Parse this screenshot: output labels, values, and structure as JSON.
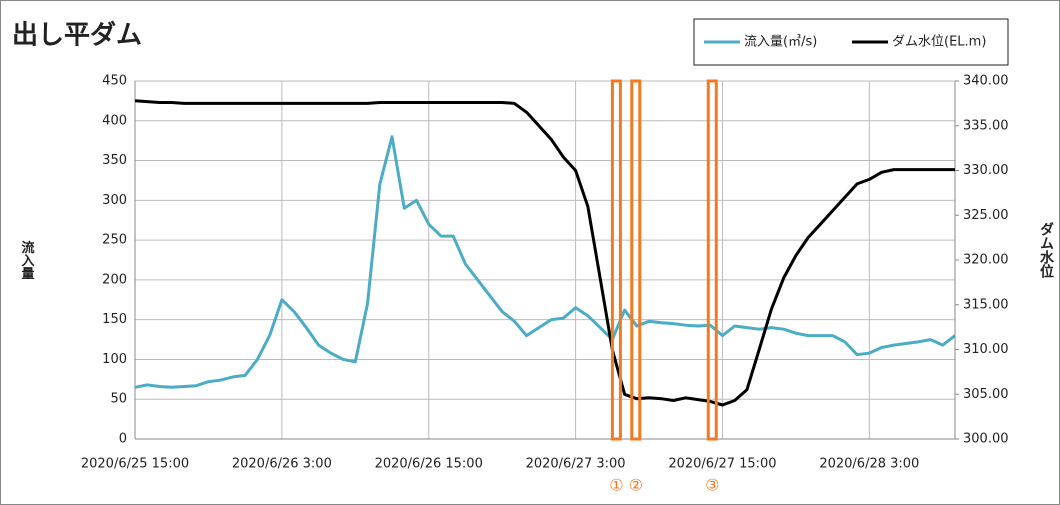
{
  "chart_data": {
    "type": "line",
    "title": "出し平ダム",
    "y_label": "流入量",
    "y2_label": "ダム水位",
    "x": [
      "2020/6/25 15:00",
      "2020/6/25 16:00",
      "2020/6/25 17:00",
      "2020/6/25 18:00",
      "2020/6/25 19:00",
      "2020/6/25 20:00",
      "2020/6/25 21:00",
      "2020/6/25 22:00",
      "2020/6/25 23:00",
      "2020/6/26 0:00",
      "2020/6/26 1:00",
      "2020/6/26 2:00",
      "2020/6/26 3:00",
      "2020/6/26 4:00",
      "2020/6/26 5:00",
      "2020/6/26 6:00",
      "2020/6/26 7:00",
      "2020/6/26 8:00",
      "2020/6/26 9:00",
      "2020/6/26 10:00",
      "2020/6/26 11:00",
      "2020/6/26 12:00",
      "2020/6/26 13:00",
      "2020/6/26 14:00",
      "2020/6/26 15:00",
      "2020/6/26 16:00",
      "2020/6/26 17:00",
      "2020/6/26 18:00",
      "2020/6/26 19:00",
      "2020/6/26 20:00",
      "2020/6/26 21:00",
      "2020/6/26 22:00",
      "2020/6/26 23:00",
      "2020/6/27 0:00",
      "2020/6/27 1:00",
      "2020/6/27 2:00",
      "2020/6/27 3:00",
      "2020/6/27 4:00",
      "2020/6/27 5:00",
      "2020/6/27 6:00",
      "2020/6/27 7:00",
      "2020/6/27 8:00",
      "2020/6/27 9:00",
      "2020/6/27 10:00",
      "2020/6/27 11:00",
      "2020/6/27 12:00",
      "2020/6/27 13:00",
      "2020/6/27 14:00",
      "2020/6/27 15:00",
      "2020/6/27 16:00",
      "2020/6/27 17:00",
      "2020/6/27 18:00",
      "2020/6/27 19:00",
      "2020/6/27 20:00",
      "2020/6/27 21:00",
      "2020/6/27 22:00",
      "2020/6/27 23:00",
      "2020/6/28 0:00",
      "2020/6/28 1:00",
      "2020/6/28 2:00",
      "2020/6/28 3:00",
      "2020/6/28 4:00",
      "2020/6/28 5:00",
      "2020/6/28 6:00",
      "2020/6/28 7:00",
      "2020/6/28 8:00",
      "2020/6/28 9:00",
      "2020/6/28 10:00"
    ],
    "series": [
      {
        "name": "流入量(㎥/s)",
        "color": "#4bacc6",
        "values": [
          65,
          68,
          66,
          65,
          66,
          67,
          72,
          74,
          78,
          80,
          100,
          130,
          175,
          160,
          140,
          118,
          108,
          100,
          97,
          170,
          320,
          380,
          290,
          300,
          270,
          255,
          255,
          220,
          200,
          180,
          160,
          148,
          130,
          140,
          150,
          152,
          165,
          155,
          140,
          125,
          162,
          142,
          148,
          146,
          145,
          143,
          142,
          143,
          130,
          142,
          140,
          138,
          140,
          138,
          133,
          130,
          130,
          130,
          122,
          106,
          108,
          115,
          118,
          120,
          122,
          125,
          118,
          130
        ]
      },
      {
        "name": "ダム水位(EL.m)",
        "color": "#000000",
        "axis": "y2",
        "values": [
          337.8,
          337.7,
          337.6,
          337.6,
          337.5,
          337.5,
          337.5,
          337.5,
          337.5,
          337.5,
          337.5,
          337.5,
          337.5,
          337.5,
          337.5,
          337.5,
          337.5,
          337.5,
          337.5,
          337.5,
          337.6,
          337.6,
          337.6,
          337.6,
          337.6,
          337.6,
          337.6,
          337.6,
          337.6,
          337.6,
          337.6,
          337.5,
          336.5,
          335,
          333.5,
          331.5,
          330,
          326,
          318,
          310,
          305,
          304.5,
          304.6,
          304.5,
          304.3,
          304.6,
          304.4,
          304.2,
          303.8,
          304.3,
          305.5,
          310,
          314.5,
          318,
          320.5,
          322.5,
          324,
          325.5,
          327,
          328.5,
          329,
          329.8,
          330.1,
          330.1,
          330.1,
          330.1,
          330.1,
          330.1
        ]
      }
    ],
    "xlim": [
      "2020/6/25 15:00",
      "2020/6/28 10:00"
    ],
    "xticks": [
      "2020/6/25 15:00",
      "2020/6/26 3:00",
      "2020/6/26 15:00",
      "2020/6/27 3:00",
      "2020/6/27 15:00",
      "2020/6/28 3:00"
    ],
    "ylim": [
      0,
      450
    ],
    "yticks": [
      0,
      50,
      100,
      150,
      200,
      250,
      300,
      350,
      400,
      450
    ],
    "y2lim": [
      300,
      340
    ],
    "y2ticks": [
      {
        "value": 300,
        "label": "300.00"
      },
      {
        "value": 305,
        "label": "305.00"
      },
      {
        "value": 310,
        "label": "310.00"
      },
      {
        "value": 315,
        "label": "315.00"
      },
      {
        "value": 320,
        "label": "320.00"
      },
      {
        "value": 325,
        "label": "325.00"
      },
      {
        "value": 330,
        "label": "330.00"
      },
      {
        "value": 335,
        "label": "335.00"
      },
      {
        "value": 340,
        "label": "340.00"
      }
    ],
    "grid": true,
    "legend": "top-right",
    "markers": [
      {
        "label": "①",
        "x": "2020/6/27 6:20"
      },
      {
        "label": "②",
        "x": "2020/6/27 7:55"
      },
      {
        "label": "③",
        "x": "2020/6/27 14:10"
      }
    ],
    "marker_color": "#f47a20"
  }
}
